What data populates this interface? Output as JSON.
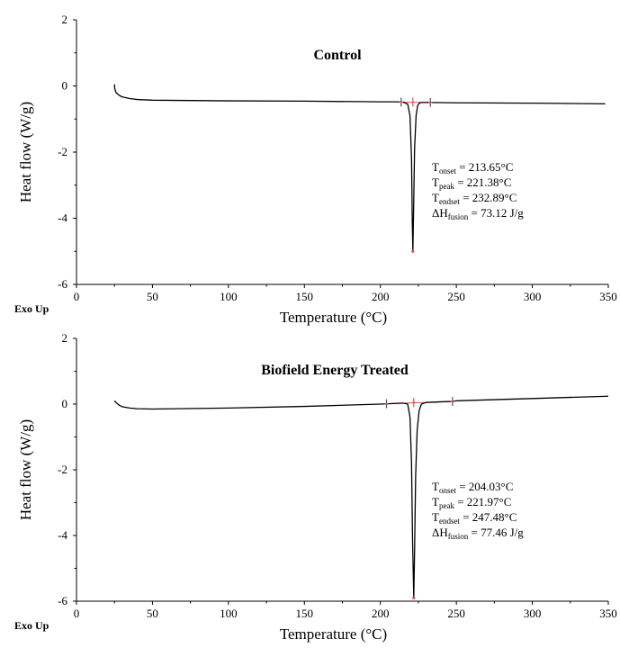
{
  "chart_data": [
    {
      "type": "line",
      "title": "Control",
      "xlabel": "Temperature (°C)",
      "ylabel": "Heat flow (W/g)",
      "corner_label": "Exo Up",
      "xlim": [
        0,
        350
      ],
      "ylim": [
        -6,
        2
      ],
      "x_ticks": [
        "0",
        "50",
        "100",
        "150",
        "200",
        "250",
        "300",
        "350"
      ],
      "y_ticks": [
        "2",
        "0",
        "-2",
        "-4",
        "-6"
      ],
      "grid": false,
      "series": [
        {
          "color": "#000000",
          "x": [
            25,
            25.2,
            26,
            28,
            30,
            35,
            40,
            50,
            100,
            150,
            200,
            210,
            215,
            218,
            219.5,
            220.5,
            221.0,
            221.38,
            221.8,
            222.5,
            223.5,
            224.5,
            225.5,
            227,
            230,
            233,
            250,
            300,
            348
          ],
          "y": [
            0.05,
            -0.08,
            -0.2,
            -0.28,
            -0.33,
            -0.38,
            -0.41,
            -0.43,
            -0.45,
            -0.46,
            -0.48,
            -0.48,
            -0.49,
            -0.55,
            -0.9,
            -2.2,
            -4.1,
            -5.0,
            -3.9,
            -1.9,
            -0.9,
            -0.6,
            -0.52,
            -0.5,
            -0.5,
            -0.5,
            -0.51,
            -0.52,
            -0.54
          ]
        }
      ],
      "baseline_color": "#e05050",
      "markers": [
        {
          "x": 213.65,
          "y": -0.49
        },
        {
          "x": 221.38,
          "y": -0.49
        },
        {
          "x": 232.89,
          "y": -0.5
        }
      ],
      "annotation": [
        {
          "main": "T",
          "sub": "onset",
          "rest": " = 213.65°C"
        },
        {
          "main": "T",
          "sub": "peak",
          "rest": " = 221.38°C"
        },
        {
          "main": "T",
          "sub": "endset",
          "rest": " = 232.89°C"
        },
        {
          "main": "ΔH",
          "sub": "fusion",
          "rest": " = 73.12 J/g"
        }
      ]
    },
    {
      "type": "line",
      "title": "Biofield Energy Treated",
      "xlabel": "Temperature (°C)",
      "ylabel": "Heat flow (W/g)",
      "corner_label": "Exo Up",
      "xlim": [
        0,
        350
      ],
      "ylim": [
        -6,
        2
      ],
      "x_ticks": [
        "0",
        "50",
        "100",
        "150",
        "200",
        "250",
        "300",
        "350"
      ],
      "y_ticks": [
        "2",
        "0",
        "-2",
        "-4",
        "-6"
      ],
      "grid": false,
      "series": [
        {
          "color": "#000000",
          "x": [
            25,
            26,
            28,
            30,
            35,
            40,
            50,
            100,
            150,
            200,
            210,
            215,
            218,
            219.5,
            220.5,
            221.2,
            221.97,
            222.5,
            223.2,
            224.2,
            225.5,
            227,
            230,
            240,
            247,
            250,
            300,
            350
          ],
          "y": [
            0.1,
            0.05,
            -0.03,
            -0.08,
            -0.12,
            -0.14,
            -0.15,
            -0.12,
            -0.07,
            0.0,
            0.02,
            0.03,
            0.0,
            -0.4,
            -1.8,
            -4.2,
            -5.9,
            -4.5,
            -2.2,
            -0.8,
            -0.2,
            0.0,
            0.05,
            0.07,
            0.08,
            0.1,
            0.17,
            0.24
          ]
        }
      ],
      "baseline_color": "#e05050",
      "markers": [
        {
          "x": 204.03,
          "y": 0.01
        },
        {
          "x": 221.97,
          "y": 0.05
        },
        {
          "x": 247.48,
          "y": 0.08
        }
      ],
      "annotation": [
        {
          "main": "T",
          "sub": "onset",
          "rest": " = 204.03°C"
        },
        {
          "main": "T",
          "sub": "peak",
          "rest": " = 221.97°C"
        },
        {
          "main": "T",
          "sub": "endset",
          "rest": " = 247.48°C"
        },
        {
          "main": "ΔH",
          "sub": "fusion",
          "rest": " = 77.46 J/g"
        }
      ]
    }
  ]
}
